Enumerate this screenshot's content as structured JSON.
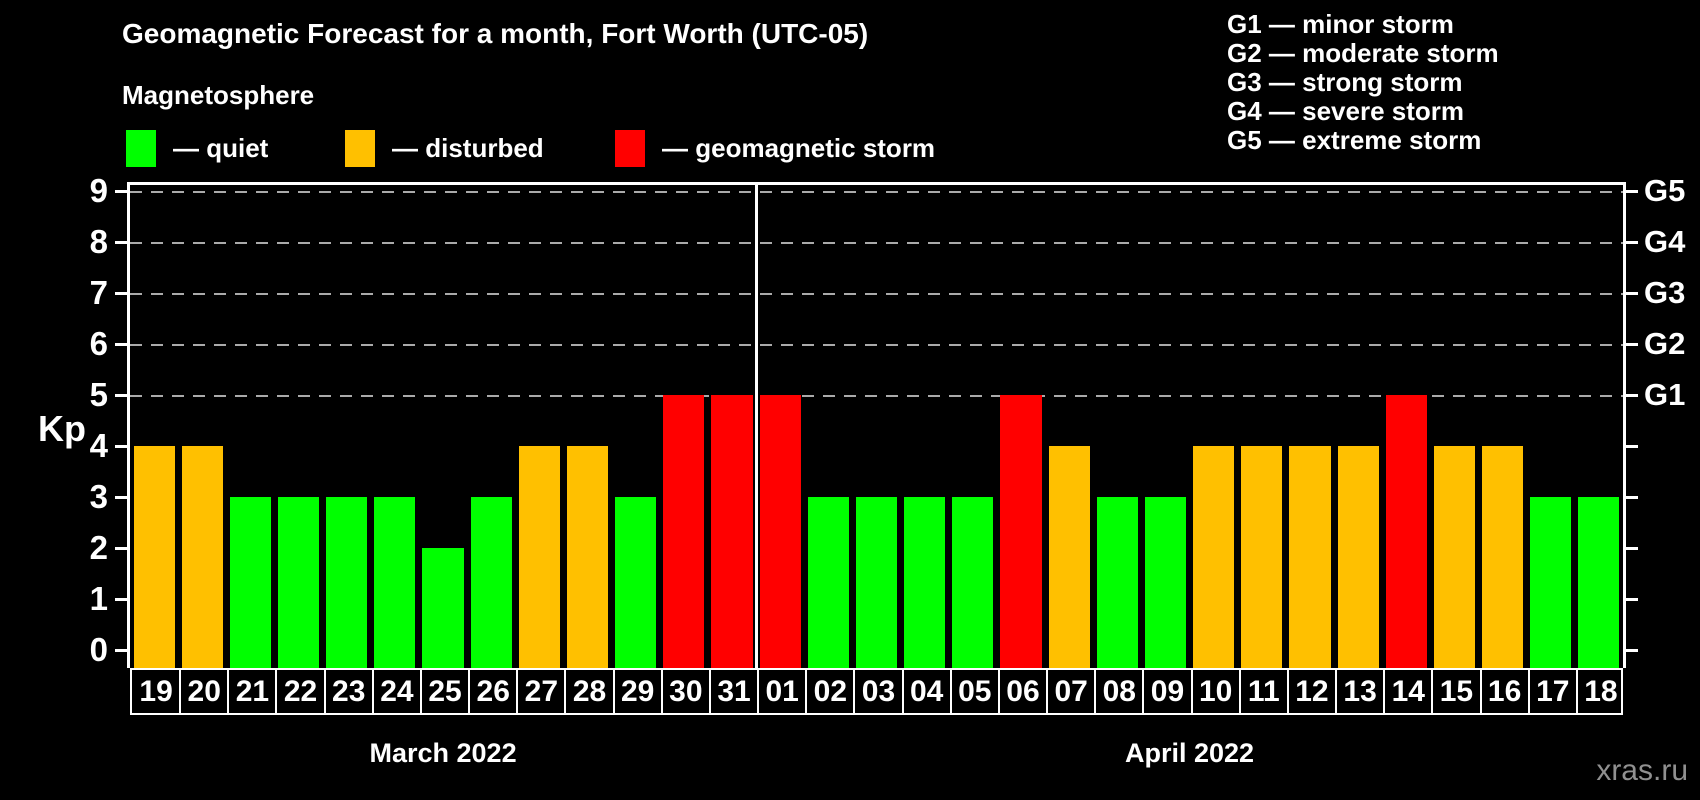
{
  "header": {
    "title": "Geomagnetic Forecast for a month, Fort Worth (UTC-05)",
    "subtitle": "Magnetosphere",
    "legend": [
      {
        "status": "quiet",
        "label": "— quiet",
        "color": "#00ff00"
      },
      {
        "status": "disturbed",
        "label": "— disturbed",
        "color": "#ffc000"
      },
      {
        "status": "storm",
        "label": "— geomagnetic storm",
        "color": "#ff0000"
      }
    ],
    "g_scale_legend": [
      "G1 — minor storm",
      "G2 — moderate storm",
      "G3 — strong storm",
      "G4 — severe storm",
      "G5 — extreme storm"
    ]
  },
  "watermark": "xras.ru",
  "chart_data": {
    "type": "bar",
    "title": "Geomagnetic Forecast for a month, Fort Worth (UTC-05)",
    "ylabel": "Kp",
    "ylim": [
      0,
      9
    ],
    "yticks": [
      0,
      1,
      2,
      3,
      4,
      5,
      6,
      7,
      8,
      9
    ],
    "gridlines_at": [
      5,
      6,
      7,
      8,
      9
    ],
    "right_axis_labels": {
      "5": "G1",
      "6": "G2",
      "7": "G3",
      "8": "G4",
      "9": "G5"
    },
    "colors": {
      "quiet": "#00ff00",
      "disturbed": "#ffc000",
      "storm": "#ff0000"
    },
    "months": [
      {
        "label": "March 2022",
        "days": 13
      },
      {
        "label": "April 2022",
        "days": 18
      }
    ],
    "categories": [
      "19",
      "20",
      "21",
      "22",
      "23",
      "24",
      "25",
      "26",
      "27",
      "28",
      "29",
      "30",
      "31",
      "01",
      "02",
      "03",
      "04",
      "05",
      "06",
      "07",
      "08",
      "09",
      "10",
      "11",
      "12",
      "13",
      "14",
      "15",
      "16",
      "17",
      "18"
    ],
    "values": [
      4,
      4,
      3,
      3,
      3,
      3,
      2,
      3,
      4,
      4,
      3,
      5,
      5,
      5,
      3,
      3,
      3,
      3,
      5,
      4,
      3,
      3,
      4,
      4,
      4,
      4,
      5,
      4,
      4,
      3,
      3
    ],
    "statuses": [
      "disturbed",
      "disturbed",
      "quiet",
      "quiet",
      "quiet",
      "quiet",
      "quiet",
      "quiet",
      "disturbed",
      "disturbed",
      "quiet",
      "storm",
      "storm",
      "storm",
      "quiet",
      "quiet",
      "quiet",
      "quiet",
      "storm",
      "disturbed",
      "quiet",
      "quiet",
      "disturbed",
      "disturbed",
      "disturbed",
      "disturbed",
      "storm",
      "disturbed",
      "disturbed",
      "quiet",
      "quiet"
    ]
  }
}
